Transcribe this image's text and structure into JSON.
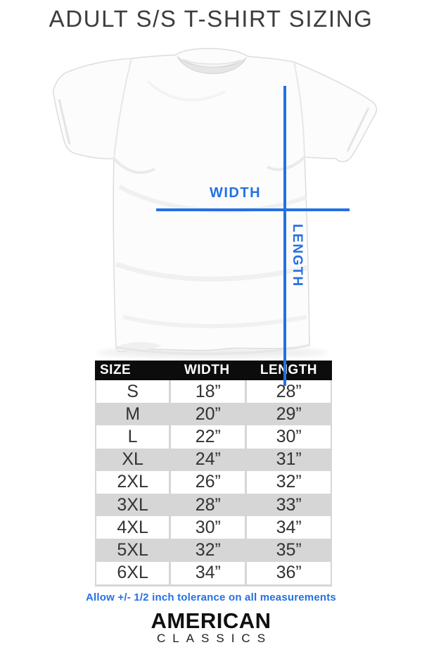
{
  "title": "ADULT S/S T-SHIRT SIZING",
  "diagram": {
    "width_label": "WIDTH",
    "length_label": "LENGTH"
  },
  "table": {
    "headers": [
      "SIZE",
      "WIDTH",
      "LENGTH"
    ],
    "rows": [
      [
        "S",
        "18”",
        "28”"
      ],
      [
        "M",
        "20”",
        "29”"
      ],
      [
        "L",
        "22”",
        "30”"
      ],
      [
        "XL",
        "24”",
        "31”"
      ],
      [
        "2XL",
        "26”",
        "32”"
      ],
      [
        "3XL",
        "28”",
        "33”"
      ],
      [
        "4XL",
        "30”",
        "34”"
      ],
      [
        "5XL",
        "32”",
        "35”"
      ],
      [
        "6XL",
        "34”",
        "36”"
      ]
    ]
  },
  "note": "Allow +/- 1/2 inch tolerance on all measurements",
  "brand": {
    "line1": "AMERICAN",
    "line2": "CLASSICS"
  },
  "theme": {
    "accent_blue": "#2470e4",
    "header_bg": "#0c0c0c",
    "header_text": "#ffffff",
    "stripe_gray": "#d6d6d6",
    "title_color": "#3d3d3d"
  },
  "chart_data": {
    "type": "table",
    "title": "ADULT S/S T-SHIRT SIZING",
    "columns": [
      "SIZE",
      "WIDTH",
      "LENGTH"
    ],
    "units": "inches",
    "rows": [
      [
        "S",
        18,
        28
      ],
      [
        "M",
        20,
        29
      ],
      [
        "L",
        22,
        30
      ],
      [
        "XL",
        24,
        31
      ],
      [
        "2XL",
        26,
        32
      ],
      [
        "3XL",
        28,
        33
      ],
      [
        "4XL",
        30,
        34
      ],
      [
        "5XL",
        32,
        35
      ],
      [
        "6XL",
        34,
        36
      ]
    ],
    "note": "Allow +/- 1/2 inch tolerance on all measurements"
  }
}
